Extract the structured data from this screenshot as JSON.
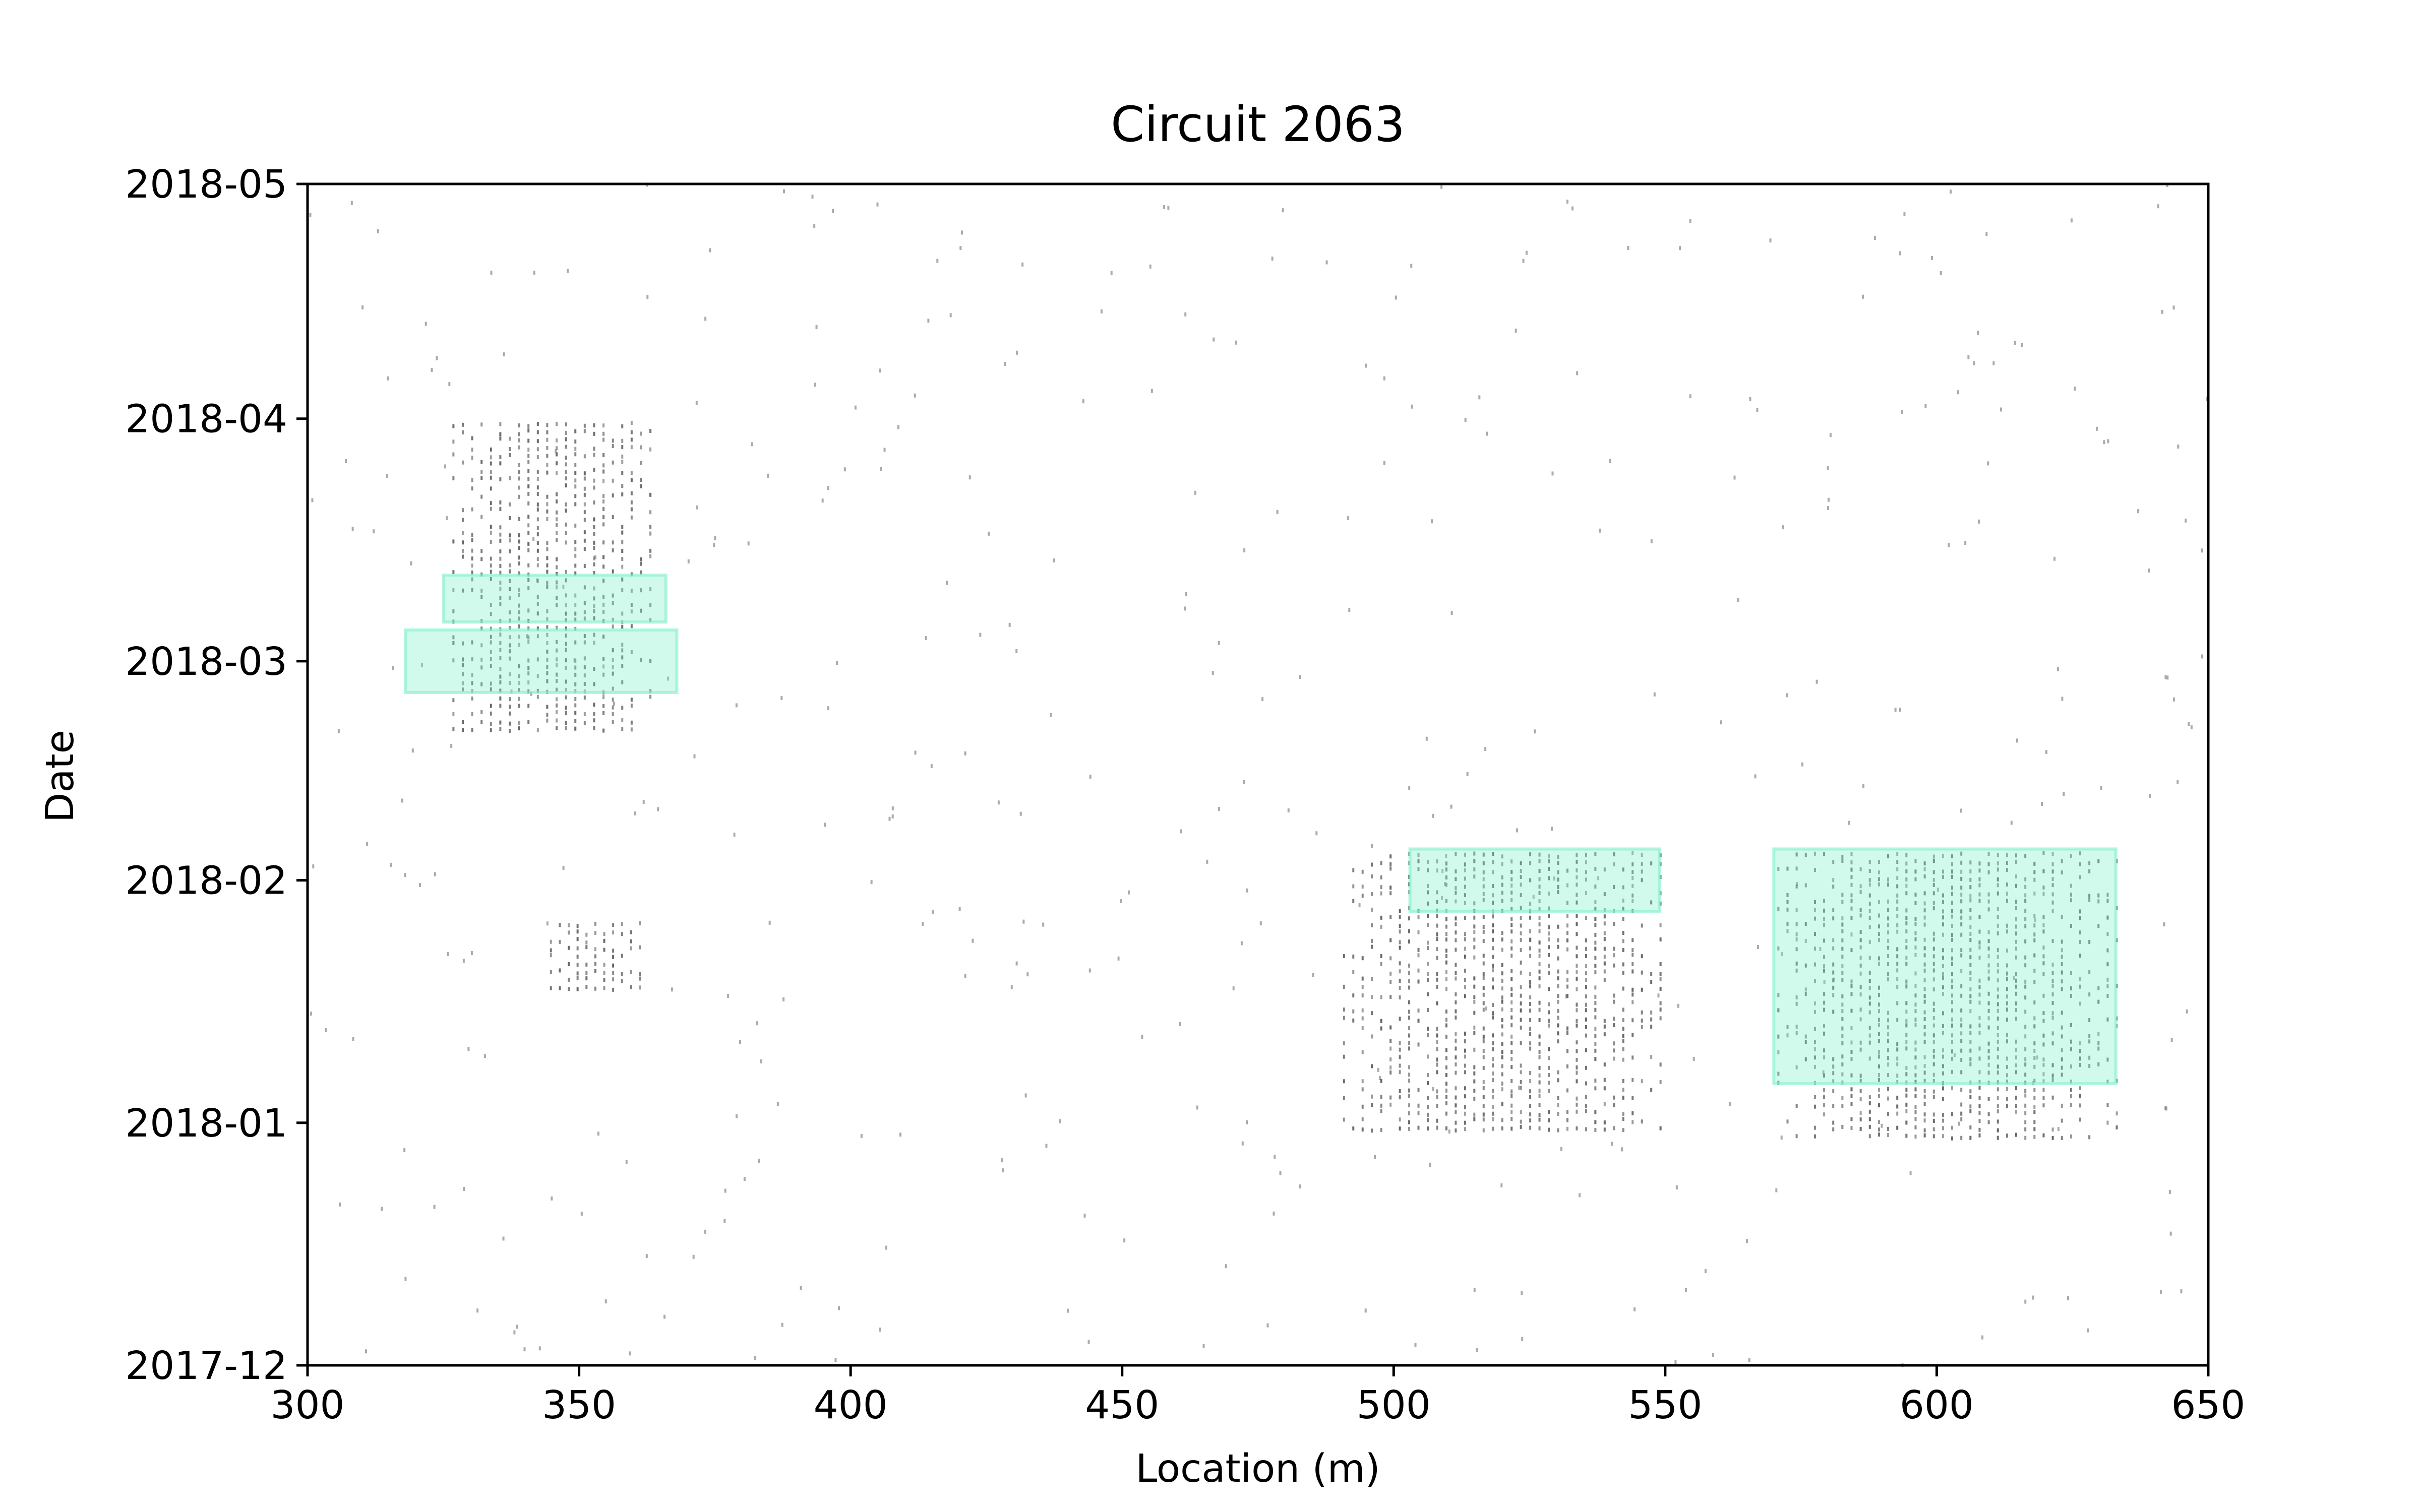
{
  "chart_data": {
    "type": "scatter",
    "title": "Circuit 2063",
    "xlabel": "Location (m)",
    "ylabel": "Date",
    "xlim": [
      300,
      650
    ],
    "ylim": [
      "2017-12-01",
      "2018-05-01"
    ],
    "x_ticks": [
      300,
      350,
      400,
      450,
      500,
      550,
      600,
      650
    ],
    "y_ticks": [
      {
        "value": "2017-12-01",
        "label": "2017-12"
      },
      {
        "value": "2018-01-01",
        "label": "2018-01"
      },
      {
        "value": "2018-02-01",
        "label": "2018-02"
      },
      {
        "value": "2018-03-01",
        "label": "2018-03"
      },
      {
        "value": "2018-04-01",
        "label": "2018-04"
      },
      {
        "value": "2018-05-01",
        "label": "2018-05"
      }
    ],
    "grid": false,
    "colors": {
      "points": "#555555",
      "region_fill": "#7ff0c8",
      "region_edge": "#7ff0c8"
    },
    "highlighted_regions": [
      {
        "x": [
          325,
          366
        ],
        "y": [
          "2018-03-06",
          "2018-03-12"
        ]
      },
      {
        "x": [
          318,
          368
        ],
        "y": [
          "2018-02-25",
          "2018-03-05"
        ]
      },
      {
        "x": [
          503,
          549
        ],
        "y": [
          "2018-01-28",
          "2018-02-05"
        ]
      },
      {
        "x": [
          570,
          633
        ],
        "y": [
          "2018-01-06",
          "2018-02-05"
        ]
      }
    ],
    "point_clusters": [
      {
        "x": [
          326,
          364
        ],
        "y": [
          "2018-02-20",
          "2018-04-01"
        ]
      },
      {
        "x": [
          344,
          362
        ],
        "y": [
          "2018-01-18",
          "2018-01-27"
        ]
      },
      {
        "x": [
          490,
          550
        ],
        "y": [
          "2017-12-31",
          "2018-02-05"
        ]
      },
      {
        "x": [
          570,
          634
        ],
        "y": [
          "2017-12-30",
          "2018-02-05"
        ]
      }
    ]
  }
}
